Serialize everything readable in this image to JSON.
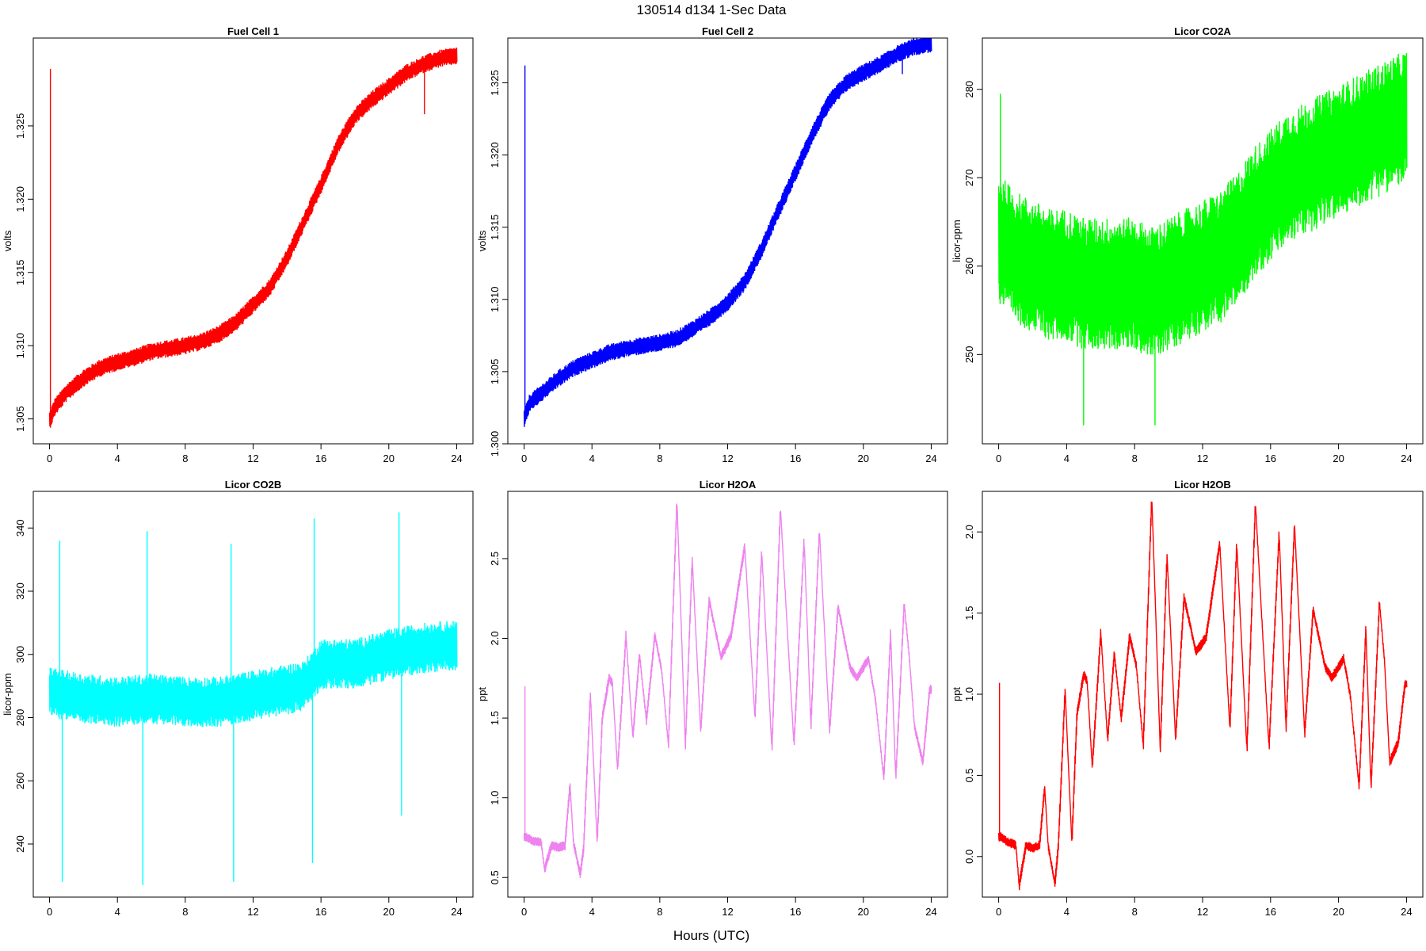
{
  "figure": {
    "title": "130514   d134   1-Sec Data",
    "xlabel": "Hours (UTC)"
  },
  "chart_data": [
    {
      "type": "line",
      "title": "Fuel Cell 1",
      "xlabel": "",
      "ylabel": "volts",
      "color": "#ff0000",
      "xlim": [
        0,
        24
      ],
      "ylim": [
        1.3033,
        1.331
      ],
      "xticks": [
        0,
        4,
        8,
        12,
        16,
        20,
        24
      ],
      "yticks": [
        "1.305",
        "1.310",
        "1.315",
        "1.320",
        "1.325"
      ],
      "noise": 0.0006,
      "x": [
        0.0,
        0.3,
        1,
        2,
        3,
        4,
        5,
        6,
        7,
        8,
        9,
        10,
        11,
        12,
        13,
        14,
        15,
        16,
        17,
        18,
        19,
        20,
        21,
        22,
        23,
        24
      ],
      "y": [
        1.3049,
        1.3058,
        1.3068,
        1.3078,
        1.3085,
        1.3089,
        1.3092,
        1.3096,
        1.3098,
        1.31,
        1.3103,
        1.3108,
        1.3116,
        1.3128,
        1.314,
        1.316,
        1.3185,
        1.321,
        1.3237,
        1.3257,
        1.3268,
        1.3277,
        1.3286,
        1.3292,
        1.3296,
        1.3298
      ],
      "spikes": [
        [
          0.05,
          1.3289
        ],
        [
          22.1,
          1.3258
        ]
      ]
    },
    {
      "type": "line",
      "title": "Fuel Cell 2",
      "xlabel": "",
      "ylabel": "volts",
      "color": "#0000ff",
      "xlim": [
        0,
        24
      ],
      "ylim": [
        1.3,
        1.3281
      ],
      "xticks": [
        0,
        4,
        8,
        12,
        16,
        20,
        24
      ],
      "yticks": [
        "1.300",
        "1.305",
        "1.310",
        "1.315",
        "1.320",
        "1.325"
      ],
      "noise": 0.0006,
      "x": [
        0.0,
        0.3,
        1,
        2,
        3,
        4,
        5,
        6,
        7,
        8,
        9,
        10,
        11,
        12,
        13,
        14,
        15,
        16,
        17,
        18,
        19,
        20,
        21,
        22,
        23,
        24
      ],
      "y": [
        1.3017,
        1.3028,
        1.3035,
        1.3045,
        1.3053,
        1.3058,
        1.3063,
        1.3066,
        1.3068,
        1.307,
        1.3073,
        1.308,
        1.3088,
        1.3098,
        1.3112,
        1.3135,
        1.3162,
        1.3188,
        1.3215,
        1.3237,
        1.325,
        1.3257,
        1.3263,
        1.327,
        1.3275,
        1.3277
      ],
      "spikes": [
        [
          0.05,
          1.3262
        ],
        [
          22.3,
          1.3256
        ]
      ]
    },
    {
      "type": "line",
      "title": "Licor CO2A",
      "xlabel": "",
      "ylabel": "licor-ppm",
      "color": "#00ff00",
      "xlim": [
        0,
        24
      ],
      "ylim": [
        239.9,
        285.8
      ],
      "xticks": [
        0,
        4,
        8,
        12,
        16,
        20,
        24
      ],
      "yticks": [
        "250",
        "260",
        "270",
        "280"
      ],
      "noise": 7.5,
      "x": [
        0,
        1,
        2,
        3,
        4,
        5,
        6,
        7,
        8,
        9,
        10,
        11,
        12,
        13,
        14,
        15,
        16,
        17,
        18,
        19,
        20,
        21,
        22,
        23,
        24
      ],
      "y": [
        263,
        261,
        260,
        259,
        259,
        258,
        258,
        258,
        258,
        257,
        258,
        259,
        260,
        261,
        263,
        266,
        268,
        270,
        271,
        272,
        273,
        274,
        275,
        276,
        277
      ],
      "spikes": [
        [
          0.1,
          279.5
        ],
        [
          5.0,
          242
        ],
        [
          9.2,
          242
        ]
      ]
    },
    {
      "type": "line",
      "title": "Licor CO2B",
      "xlabel": "",
      "ylabel": "licor-ppm",
      "color": "#00ffff",
      "xlim": [
        0,
        24
      ],
      "ylim": [
        223.2,
        351.6
      ],
      "xticks": [
        0,
        4,
        8,
        12,
        16,
        20,
        24
      ],
      "yticks": [
        "240",
        "260",
        "280",
        "300",
        "320",
        "340"
      ],
      "noise": 8,
      "x": [
        0,
        2,
        4,
        6,
        8,
        10,
        12,
        14,
        15,
        16,
        18,
        20,
        22,
        24
      ],
      "y": [
        288,
        286,
        285,
        286,
        285,
        285,
        287,
        289,
        290,
        297,
        297,
        300,
        302,
        303
      ],
      "spikes": [
        [
          0.6,
          336
        ],
        [
          0.75,
          228
        ],
        [
          5.5,
          227
        ],
        [
          5.75,
          339
        ],
        [
          10.7,
          335
        ],
        [
          10.85,
          228
        ],
        [
          15.5,
          234
        ],
        [
          15.6,
          343
        ],
        [
          20.6,
          345
        ],
        [
          20.75,
          249
        ]
      ]
    },
    {
      "type": "line",
      "title": "Licor H2OA",
      "xlabel": "",
      "ylabel": "ppt",
      "color": "#ee82ee",
      "xlim": [
        0,
        24
      ],
      "ylim": [
        0.377,
        2.922
      ],
      "xticks": [
        0,
        4,
        8,
        12,
        16,
        20,
        24
      ],
      "yticks": [
        "0.5",
        "1.0",
        "1.5",
        "2.0",
        "2.5"
      ],
      "noise": 0.03,
      "x": [
        0,
        0.15,
        0.5,
        1.0,
        1.2,
        1.6,
        2.0,
        2.4,
        2.7,
        2.9,
        3.3,
        3.5,
        3.9,
        4.3,
        4.6,
        5.0,
        5.2,
        5.5,
        6.0,
        6.4,
        6.8,
        7.2,
        7.7,
        8.1,
        8.5,
        9.0,
        9.5,
        9.9,
        10.4,
        10.9,
        11.6,
        12.2,
        13.0,
        13.6,
        14.0,
        14.6,
        15.1,
        15.9,
        16.5,
        16.9,
        17.4,
        18.0,
        18.5,
        19.2,
        19.6,
        20.3,
        20.7,
        21.2,
        21.6,
        21.9,
        22.4,
        22.7,
        23.0,
        23.5,
        23.9
      ],
      "y": [
        0.75,
        0.75,
        0.73,
        0.72,
        0.55,
        0.7,
        0.69,
        0.7,
        1.08,
        0.72,
        0.52,
        0.68,
        1.65,
        0.72,
        1.5,
        1.75,
        1.72,
        1.18,
        2.02,
        1.38,
        1.9,
        1.48,
        2.02,
        1.8,
        1.33,
        2.87,
        1.32,
        2.5,
        1.42,
        2.24,
        1.88,
        2.02,
        2.58,
        1.5,
        2.55,
        1.3,
        2.82,
        1.33,
        2.62,
        1.45,
        2.68,
        1.42,
        2.2,
        1.82,
        1.75,
        1.87,
        1.62,
        1.12,
        2.03,
        1.12,
        2.22,
        1.88,
        1.45,
        1.22,
        1.68
      ],
      "spikes": [
        [
          0.05,
          1.7
        ]
      ]
    },
    {
      "type": "line",
      "title": "Licor H2OB",
      "xlabel": "",
      "ylabel": "ppt",
      "color": "#ff0000",
      "xlim": [
        0,
        24
      ],
      "ylim": [
        -0.25,
        2.25
      ],
      "xticks": [
        0,
        4,
        8,
        12,
        16,
        20,
        24
      ],
      "yticks": [
        "0.0",
        "0.5",
        "1.0",
        "1.5",
        "2.0"
      ],
      "noise": 0.03,
      "x": [
        0,
        0.15,
        0.5,
        1.0,
        1.2,
        1.6,
        2.0,
        2.4,
        2.7,
        2.9,
        3.3,
        3.5,
        3.9,
        4.3,
        4.6,
        5.0,
        5.2,
        5.5,
        6.0,
        6.4,
        6.8,
        7.2,
        7.7,
        8.1,
        8.5,
        9.0,
        9.5,
        9.9,
        10.4,
        10.9,
        11.6,
        12.2,
        13.0,
        13.6,
        14.0,
        14.6,
        15.1,
        15.9,
        16.5,
        16.9,
        17.4,
        18.0,
        18.5,
        19.2,
        19.6,
        20.3,
        20.7,
        21.2,
        21.6,
        21.9,
        22.4,
        22.7,
        23.0,
        23.5,
        23.9
      ],
      "y": [
        0.12,
        0.12,
        0.09,
        0.07,
        -0.18,
        0.07,
        0.05,
        0.07,
        0.43,
        0.07,
        -0.17,
        0.06,
        1.03,
        0.08,
        0.88,
        1.12,
        1.08,
        0.55,
        1.38,
        0.72,
        1.25,
        0.85,
        1.36,
        1.17,
        0.68,
        2.22,
        0.66,
        1.86,
        0.72,
        1.6,
        1.26,
        1.35,
        1.93,
        0.78,
        1.93,
        0.65,
        2.18,
        0.67,
        2.0,
        0.79,
        2.05,
        0.76,
        1.52,
        1.17,
        1.1,
        1.22,
        0.98,
        0.43,
        1.4,
        0.42,
        1.57,
        1.2,
        0.58,
        0.7,
        1.06
      ],
      "spikes": [
        [
          0.05,
          1.07
        ]
      ]
    }
  ]
}
